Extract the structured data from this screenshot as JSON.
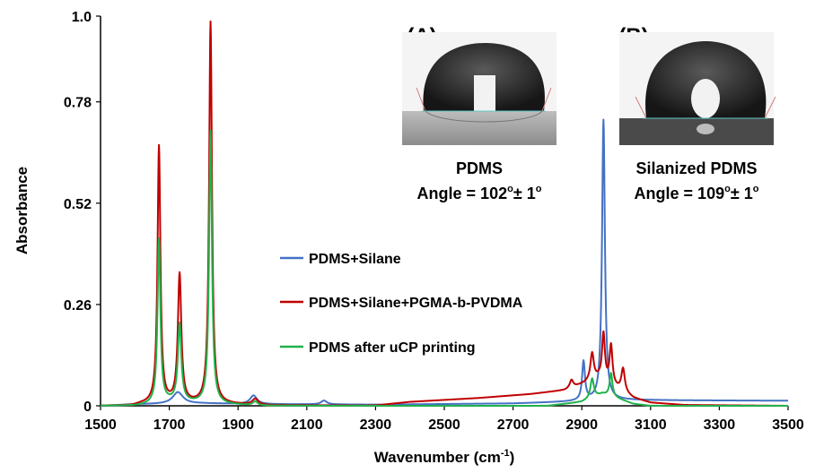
{
  "chart_data": {
    "type": "line",
    "title": "",
    "xlabel": "Wavenumber (cm",
    "xlabel_sup": "-1",
    "xlabel_end": ")",
    "ylabel": "Absorbance",
    "xlim": [
      1500,
      3500
    ],
    "ylim": [
      0,
      1.0
    ],
    "x_ticks": [
      1500,
      1700,
      1900,
      2100,
      2300,
      2500,
      2700,
      2900,
      3100,
      3300,
      3500
    ],
    "y_ticks": [
      0,
      0.26,
      0.52,
      0.78,
      1.0
    ],
    "x_tick_labels": [
      "1500",
      "1700",
      "1900",
      "2100",
      "2300",
      "2500",
      "2700",
      "2900",
      "3100",
      "3300",
      "3500"
    ],
    "y_tick_labels": [
      "0",
      "0.26",
      "0.52",
      "0.78",
      "1.0"
    ],
    "legend_position": "center",
    "series": [
      {
        "name": "PDMS+Silane",
        "color": "#4472c4",
        "baseline": [
          [
            1500,
            0
          ],
          [
            1600,
            0.004
          ],
          [
            1800,
            0.006
          ],
          [
            2000,
            0.004
          ],
          [
            2300,
            0.003
          ],
          [
            2700,
            0.006
          ],
          [
            2850,
            0.01
          ],
          [
            3000,
            0.015
          ],
          [
            3200,
            0.014
          ],
          [
            3500,
            0.013
          ]
        ],
        "peaks": [
          [
            1725,
            0.03,
            18
          ],
          [
            1945,
            0.022,
            12
          ],
          [
            2150,
            0.01,
            10
          ],
          [
            2905,
            0.1,
            5
          ],
          [
            2963,
            0.72,
            5
          ]
        ]
      },
      {
        "name": "PDMS+Silane+PGMA-b-PVDMA",
        "color": "#c00000",
        "baseline": [
          [
            1500,
            0
          ],
          [
            1590,
            0
          ],
          [
            1620,
            0.004
          ],
          [
            1700,
            0.006
          ],
          [
            1900,
            0.003
          ],
          [
            2000,
            0.001
          ],
          [
            2300,
            0.001
          ],
          [
            2400,
            0.01
          ],
          [
            2600,
            0.02
          ],
          [
            2750,
            0.03
          ],
          [
            2850,
            0.04
          ],
          [
            2950,
            0.07
          ],
          [
            3050,
            0.02
          ],
          [
            3100,
            0.008
          ],
          [
            3200,
            0.002
          ],
          [
            3500,
            0
          ]
        ],
        "peaks": [
          [
            1670,
            0.66,
            5
          ],
          [
            1730,
            0.33,
            6
          ],
          [
            1820,
            0.98,
            5
          ],
          [
            1950,
            0.015,
            10
          ],
          [
            2870,
            0.02,
            6
          ],
          [
            2930,
            0.07,
            6
          ],
          [
            2963,
            0.12,
            5
          ],
          [
            2985,
            0.1,
            5
          ],
          [
            3020,
            0.06,
            6
          ]
        ]
      },
      {
        "name": "PDMS after uCP printing",
        "color": "#21b24b",
        "baseline": [
          [
            1500,
            0
          ],
          [
            1600,
            0
          ],
          [
            1640,
            0.003
          ],
          [
            1700,
            0.01
          ],
          [
            1900,
            0.002
          ],
          [
            1980,
            0
          ],
          [
            2800,
            0
          ],
          [
            2900,
            0.01
          ],
          [
            2960,
            0.03
          ],
          [
            3000,
            0.02
          ],
          [
            3050,
            0.005
          ],
          [
            3100,
            0
          ],
          [
            3500,
            0
          ]
        ],
        "peaks": [
          [
            1670,
            0.42,
            5
          ],
          [
            1730,
            0.2,
            6
          ],
          [
            1820,
            0.7,
            5
          ],
          [
            1950,
            0.01,
            8
          ],
          [
            2930,
            0.05,
            6
          ],
          [
            2985,
            0.06,
            5
          ]
        ]
      }
    ],
    "insets": [
      {
        "letter": "(A)",
        "caption": "PDMS",
        "angle_prefix": "Angle = 102",
        "deg1": "o",
        "angle_mid": "± 1",
        "deg2": "o"
      },
      {
        "letter": "(B)",
        "caption": "Silanized PDMS",
        "angle_prefix": "Angle = 109",
        "deg1": "o",
        "angle_mid": "± 1",
        "deg2": "o"
      }
    ]
  }
}
